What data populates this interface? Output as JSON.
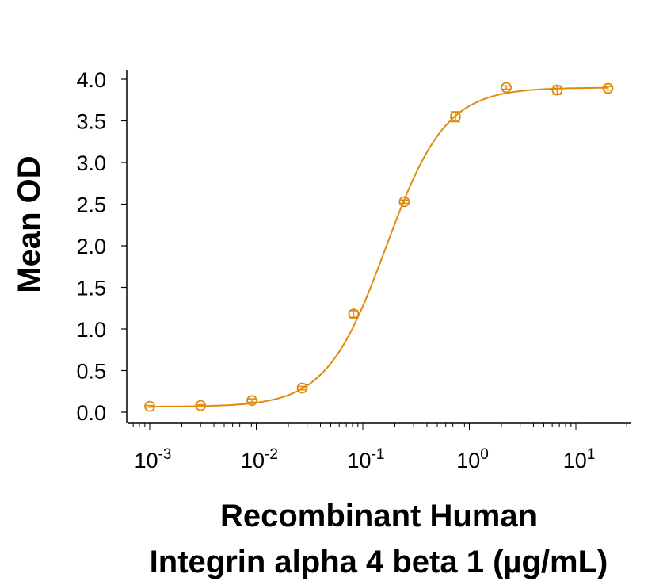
{
  "chart_data": {
    "type": "scatter",
    "title": "",
    "xlabel": "Recombinant Human Integrin alpha 4 beta 1 (µg/mL)",
    "xlabel_lines": [
      "Recombinant Human",
      "Integrin alpha 4 beta 1 (µg/mL)"
    ],
    "ylabel": "Mean OD",
    "xscale": "log",
    "xlim": [
      0.0006,
      35
    ],
    "ylim": [
      0.0,
      4.0
    ],
    "x_ticks": [
      {
        "value": 0.001,
        "base": "10",
        "exp": "-3"
      },
      {
        "value": 0.01,
        "base": "10",
        "exp": "-2"
      },
      {
        "value": 0.1,
        "base": "10",
        "exp": "-1"
      },
      {
        "value": 1,
        "base": "10",
        "exp": "0"
      },
      {
        "value": 10,
        "base": "10",
        "exp": "1"
      }
    ],
    "y_ticks": [
      "0.0",
      "0.5",
      "1.0",
      "1.5",
      "2.0",
      "2.5",
      "3.0",
      "3.5",
      "4.0"
    ],
    "grid": false,
    "legend": null,
    "series": [
      {
        "name": "Mean OD",
        "color": "#E08A0B",
        "marker": "open-circle",
        "fit": "4-parameter logistic curve",
        "x": [
          0.001,
          0.003,
          0.0091,
          0.027,
          0.082,
          0.245,
          0.74,
          2.22,
          6.67,
          20
        ],
        "y": [
          0.07,
          0.08,
          0.14,
          0.29,
          1.18,
          2.53,
          3.55,
          3.9,
          3.87,
          3.89
        ],
        "error": [
          0.01,
          0.01,
          0.02,
          0.02,
          0.04,
          0.02,
          0.06,
          0.02,
          0.05,
          0.02
        ]
      }
    ]
  }
}
